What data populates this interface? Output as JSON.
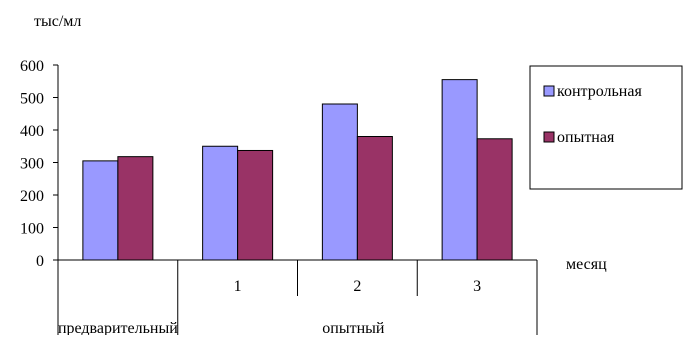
{
  "chart_data": {
    "type": "bar",
    "ylabel": "тыс/мл",
    "xlabel": "месяц",
    "ylim": [
      0,
      600
    ],
    "yticks": [
      0,
      100,
      200,
      300,
      400,
      500,
      600
    ],
    "grid": false,
    "legend_position": "right",
    "categories": [
      "",
      "1",
      "2",
      "3"
    ],
    "groups": [
      {
        "label": "предварительный",
        "span": 1
      },
      {
        "label": "опытный",
        "span": 3
      }
    ],
    "series": [
      {
        "name": "контрольная",
        "color": "#9999ff",
        "values": [
          305,
          350,
          480,
          555
        ]
      },
      {
        "name": "опытная",
        "color": "#993366",
        "values": [
          318,
          337,
          380,
          373
        ]
      }
    ]
  }
}
